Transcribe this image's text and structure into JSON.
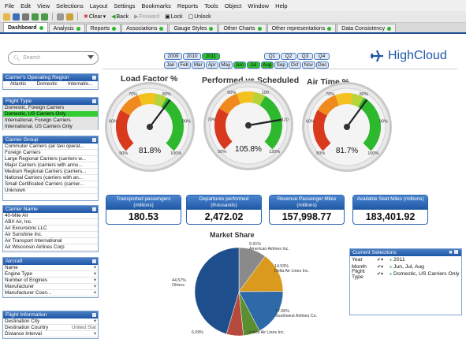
{
  "menu": [
    "File",
    "Edit",
    "View",
    "Selections",
    "Layout",
    "Settings",
    "Bookmarks",
    "Reports",
    "Tools",
    "Object",
    "Window",
    "Help"
  ],
  "toolbar": {
    "clear": "Clear",
    "back": "Back",
    "forward": "Forward",
    "lock": "Lock",
    "unlock": "Unlock"
  },
  "tabs": [
    "Dashboard",
    "Analysis",
    "Reports",
    "Associations",
    "Gauge Styles",
    "Other Charts",
    "Other representations",
    "Data Consistency"
  ],
  "search": {
    "placeholder": "Search"
  },
  "logo": "HighCloud",
  "years": [
    "2009",
    "2010",
    "2011"
  ],
  "quarters": [
    "Q1",
    "Q2",
    "Q3",
    "Q4"
  ],
  "months": [
    "Jan",
    "Feb",
    "Mar",
    "Apr",
    "May",
    "Jun",
    "Jul",
    "Aug",
    "Sep",
    "Oct",
    "Nov",
    "Dec"
  ],
  "listboxes": {
    "region": {
      "title": "Carrier's Operating Region",
      "items": [
        "Atlantic",
        "Domestic",
        "Internatio..."
      ]
    },
    "flight_type": {
      "title": "Flight Type",
      "items": [
        "Domestic, Foreign Carriers",
        "Domestic, US Carriers Only",
        "International, Foreign Carriers",
        "International, US Carriers Only"
      ]
    },
    "carrier_group": {
      "title": "Carrier Group",
      "items": [
        "Commuter Carriers (air taxi operat...",
        "Foreign Carriers",
        "Large Regional Carriers (carriers w...",
        "Major Carriers (carriers with annu...",
        "Medium Regional Carriers (carriers...",
        "National Carriers (carriers with an...",
        "Small Certificated Carriers (carrier...",
        "Unknown"
      ]
    },
    "carrier_name": {
      "title": "Carrier Name",
      "items": [
        "40-Mile Air",
        "ABX Air, Inc.",
        "Air Excursions LLC",
        "Air Sunshine Inc.",
        "Air Transport International",
        "Air Wisconsin Airlines Corp"
      ]
    },
    "aircraft": {
      "title": "Aircraft",
      "items": [
        "Name",
        "Engine Type",
        "Number of Engines",
        "Manufacturer",
        "Manufacturer Coun..."
      ]
    },
    "flight_info": {
      "title": "Flight Information",
      "items": [
        "Destination City",
        "Destination Country",
        "Distance Interval"
      ],
      "value2": "United Stat"
    }
  },
  "gauges": [
    {
      "title": "Load Factor %",
      "value_text": "81.8%",
      "value": 81.8,
      "ticks": [
        "50%",
        "60%",
        "70%",
        "80%",
        "90%",
        "100%"
      ]
    },
    {
      "title": "Performed vs Scheduled",
      "value_text": "105.8%",
      "value": 105.8,
      "ticks": [
        "50%",
        "70%",
        "90%",
        "100",
        "110",
        "120%"
      ]
    },
    {
      "title": "Air Time %",
      "value_text": "81.7%",
      "value": 81.7,
      "ticks": [
        "50%",
        "60%",
        "70%",
        "80%",
        "90%",
        "100%"
      ]
    }
  ],
  "kpis": [
    {
      "label": "Transported passengers (millions)",
      "value": "180.53"
    },
    {
      "label": "Departures performed (thousands)",
      "value": "2,472.02"
    },
    {
      "label": "Revenue Passenger Miles (millions)",
      "value": "157,998.77"
    },
    {
      "label": "Available Seat Miles (millions)",
      "value": "183,401.92"
    }
  ],
  "market_share": {
    "title": "Market Share",
    "slices": [
      {
        "name": "American Airlines Inc.",
        "pct": 9.91,
        "label": "9.91%",
        "color": "#8a8a8a"
      },
      {
        "name": "Delta Air Lines Inc.",
        "pct": 14.53,
        "label": "14.53%",
        "color": "#d99a1e"
      },
      {
        "name": "Southwest Airlines Co.",
        "pct": 17.06,
        "label": "17.06%",
        "color": "#2f6aa8"
      },
      {
        "name": "United Air Lines Inc.",
        "pct": 5.95,
        "label": "",
        "color": "#5a8f2f"
      },
      {
        "name": "",
        "pct": 6.09,
        "label": "6.09%",
        "color": "#b64a3c"
      },
      {
        "name": "Others",
        "pct": 44.57,
        "label": "44.57%",
        "color": "#1e4f8c"
      }
    ]
  },
  "current_selections": {
    "title": "Current Selections",
    "rows": [
      {
        "field": "Year",
        "value": "2011"
      },
      {
        "field": "Month",
        "value": "Jun, Jul, Aug"
      },
      {
        "field": "Flight Type",
        "value": "Domestic, US Carriers Only"
      }
    ]
  },
  "colors": {
    "selected": "#33cc33",
    "header_blue": "#1d56a6",
    "gauge_red": "#d93a1e",
    "gauge_green": "#2eb82e"
  }
}
